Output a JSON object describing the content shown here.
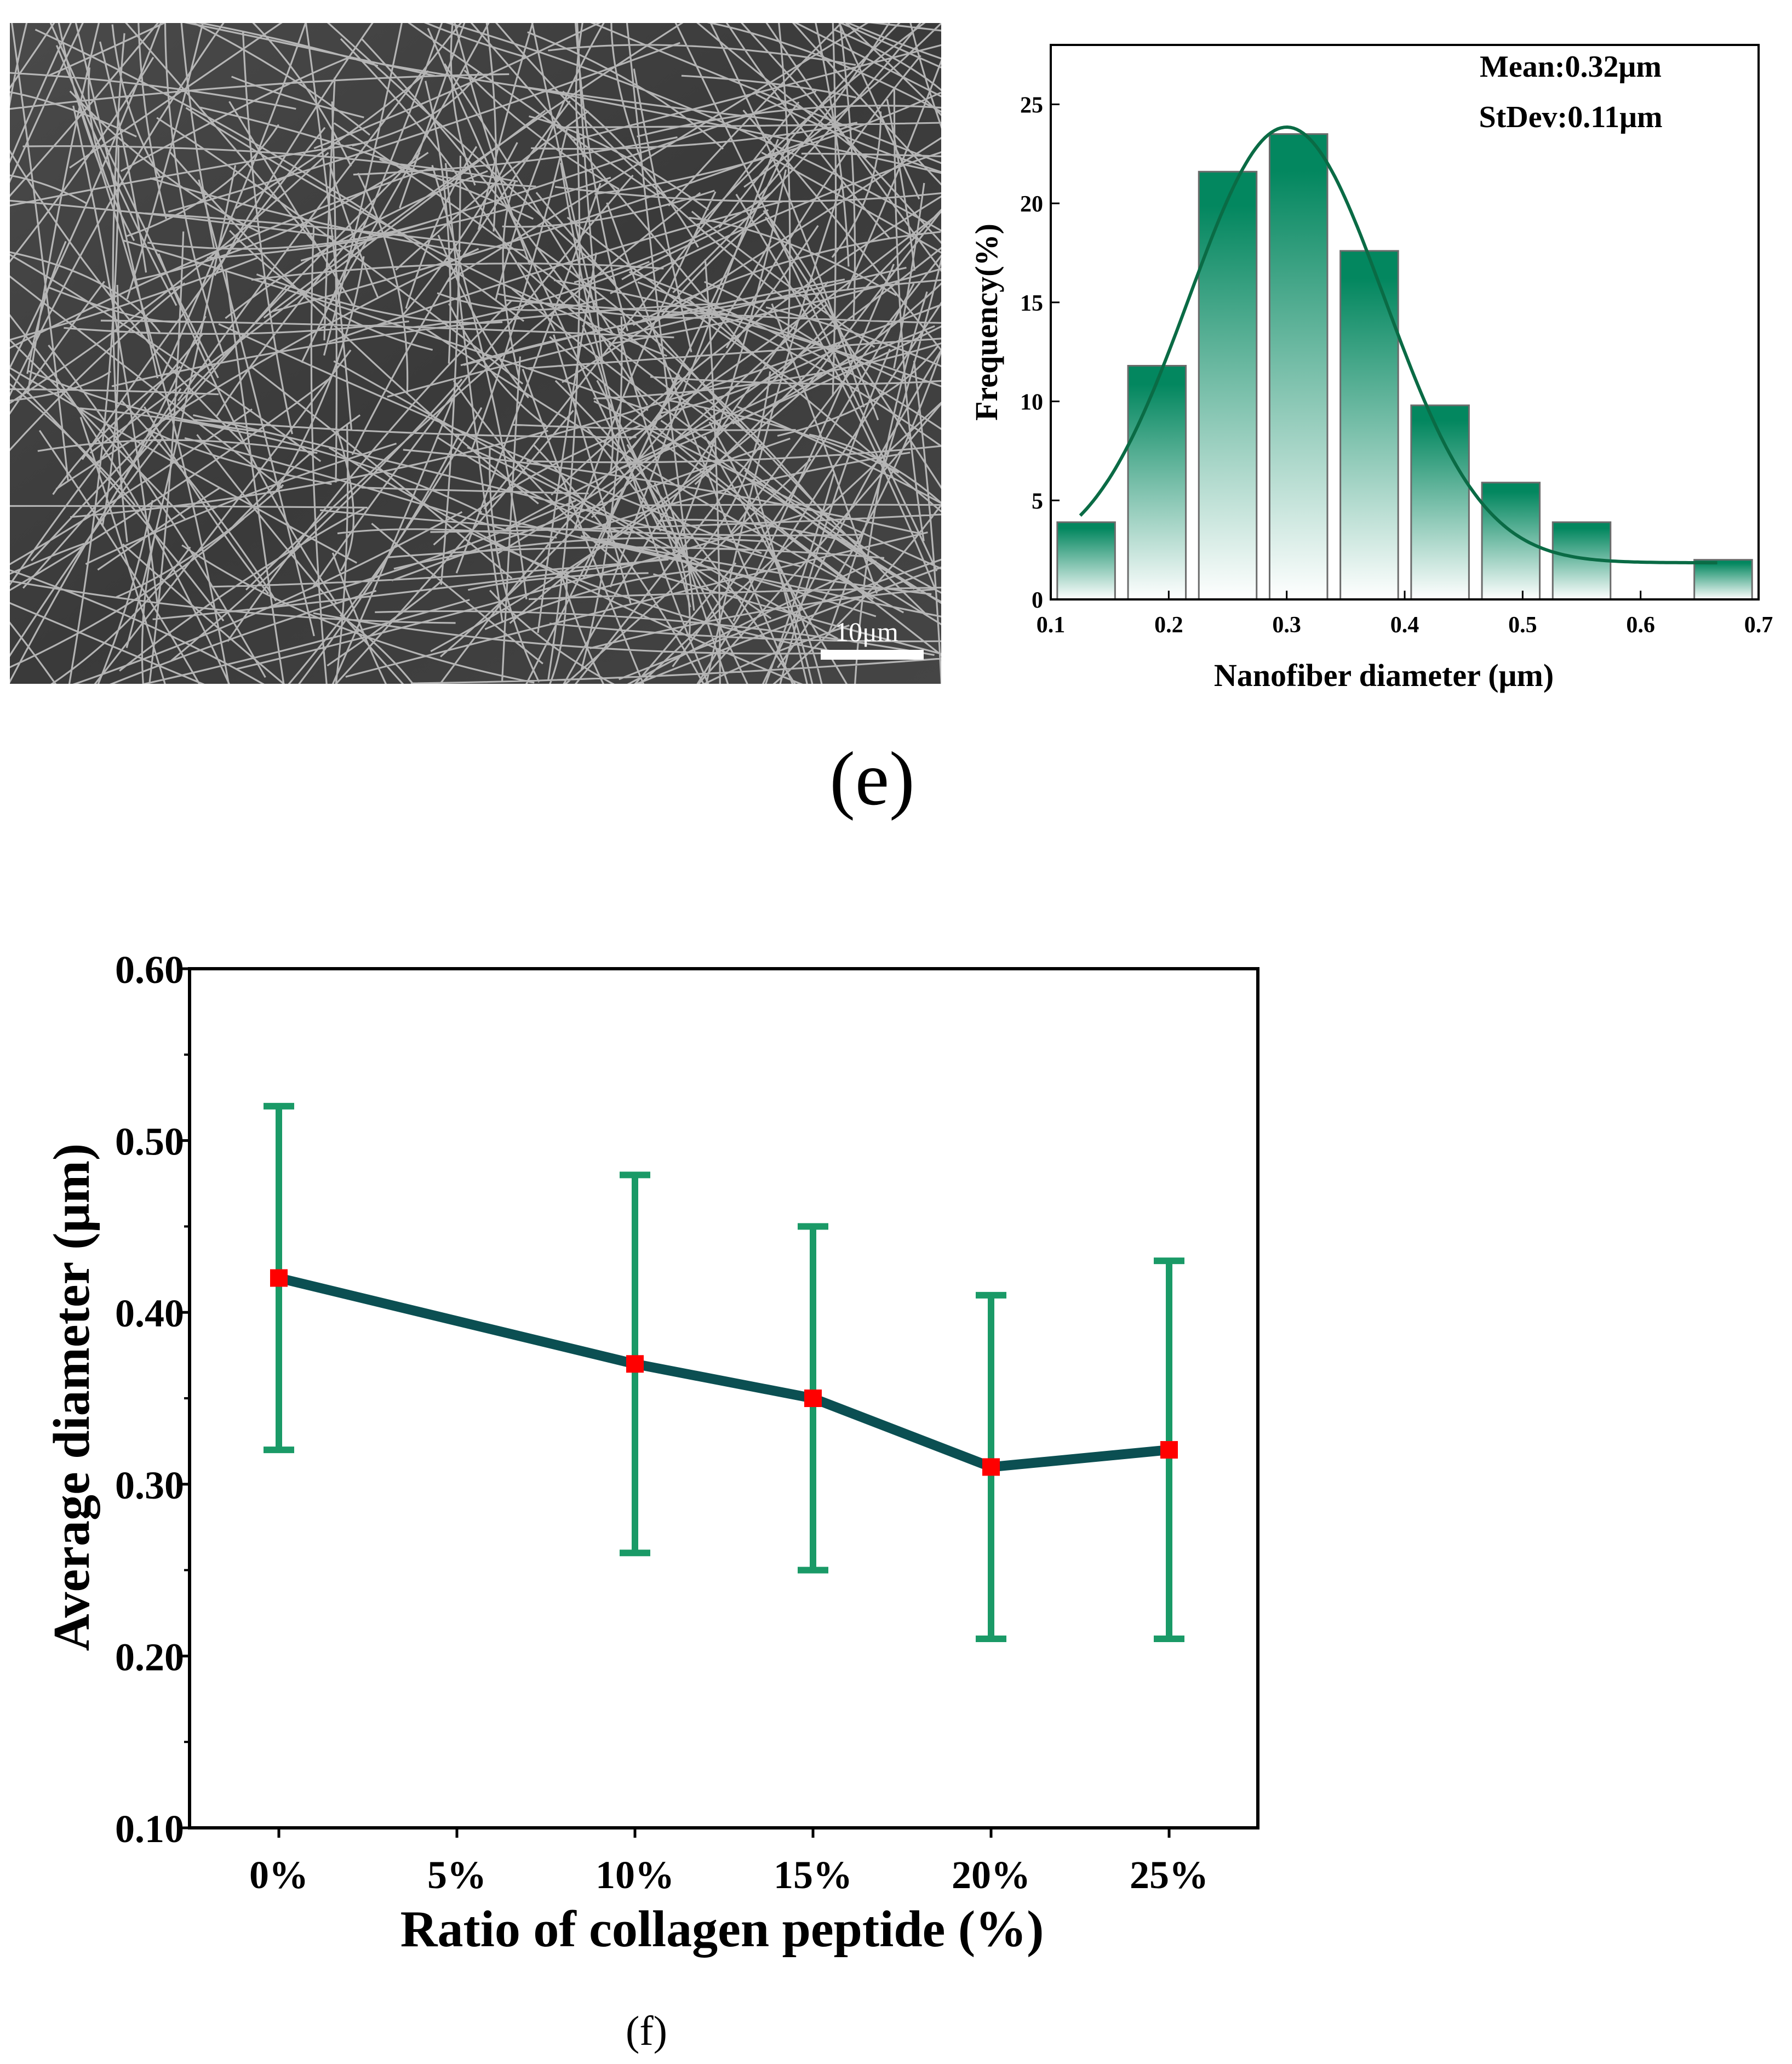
{
  "panel_e": {
    "label": "(e)",
    "sem": {
      "scale_bar_label": "10μm"
    }
  },
  "panel_f": {
    "label": "(f)"
  },
  "colors": {
    "bar_green": "#03875f",
    "fit_curve": "#0a6b45",
    "line_dark": "#0b4f52",
    "errorbar_green": "#1a9a67",
    "marker_red": "#ff0000"
  },
  "chart_data": [
    {
      "type": "bar",
      "title": "",
      "xlabel": "Nanofiber diameter (μm)",
      "ylabel": "Frequency(%)",
      "xlim": [
        0.1,
        0.7
      ],
      "ylim": [
        0,
        28
      ],
      "x_ticks": [
        0.1,
        0.2,
        0.3,
        0.4,
        0.5,
        0.6,
        0.7
      ],
      "x_tick_labels": [
        "0.1",
        "0.2",
        "0.3",
        "0.4",
        "0.5",
        "0.6",
        "0.7"
      ],
      "y_ticks": [
        0,
        5,
        10,
        15,
        20,
        25
      ],
      "y_tick_labels": [
        "0",
        "5",
        "10",
        "15",
        "20",
        "25"
      ],
      "bin_width": 0.06,
      "bin_centers": [
        0.13,
        0.19,
        0.25,
        0.31,
        0.37,
        0.43,
        0.49,
        0.55,
        0.67
      ],
      "values": [
        3.9,
        11.8,
        21.6,
        23.5,
        17.6,
        9.8,
        5.9,
        3.9,
        2.0
      ],
      "fit_curve": {
        "type": "gaussian",
        "mean": 0.3,
        "sigma": 0.083,
        "amplitude": 22.0,
        "baseline": 1.85,
        "x_range": [
          0.125,
          0.665
        ]
      },
      "annotations": [
        "Mean:0.32μm",
        "StDev:0.11μm"
      ]
    },
    {
      "type": "line",
      "title": "",
      "xlabel": "Ratio of collagen peptide (%)",
      "ylabel": "Average diameter (μm)",
      "categories": [
        "0%",
        "5%",
        "10%",
        "15%",
        "20%",
        "25%"
      ],
      "ylim": [
        0.1,
        0.6
      ],
      "y_ticks": [
        0.1,
        0.2,
        0.3,
        0.4,
        0.5,
        0.6
      ],
      "y_tick_labels": [
        "0.10",
        "0.20",
        "0.30",
        "0.40",
        "0.50",
        "0.60"
      ],
      "series": [
        {
          "name": "Average diameter",
          "x": [
            "0%",
            "10%",
            "15%",
            "20%",
            "25%"
          ],
          "values": [
            0.42,
            0.37,
            0.35,
            0.31,
            0.32
          ],
          "error_low": [
            0.32,
            0.26,
            0.25,
            0.21,
            0.21
          ],
          "error_high": [
            0.52,
            0.48,
            0.45,
            0.41,
            0.43
          ]
        }
      ]
    }
  ]
}
